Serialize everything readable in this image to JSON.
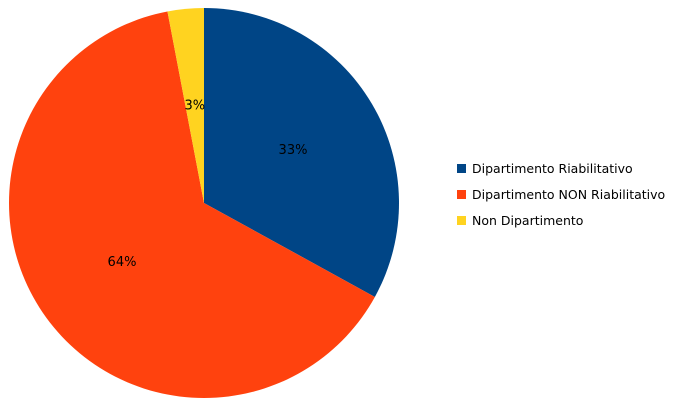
{
  "chart_data": {
    "type": "pie",
    "title": "",
    "slices": [
      {
        "label": "Dipartimento Riabilitativo",
        "value": 33,
        "display": "33%",
        "color": "#004586"
      },
      {
        "label": "Dipartimento NON Riabilitativo",
        "value": 64,
        "display": "64%",
        "color": "#ff420e"
      },
      {
        "label": "Non Dipartimento",
        "value": 3,
        "display": "3%",
        "color": "#ffd320"
      }
    ],
    "start_angle_deg": 0,
    "direction": "clockwise",
    "legend_position": "right"
  }
}
